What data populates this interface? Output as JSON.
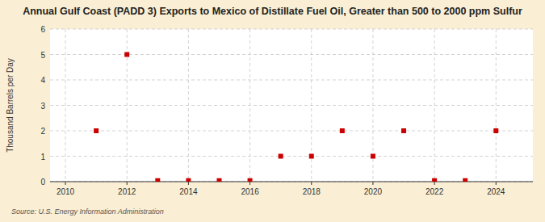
{
  "chart_data": {
    "type": "scatter",
    "title": "Annual Gulf Coast (PADD 3) Exports to Mexico of Distillate Fuel Oil, Greater than 500 to 2000 ppm Sulfur",
    "ylabel": "Thousand Barrels per Day",
    "annotations": [
      "Source: U.S. Energy Information Administration"
    ],
    "x": [
      2011,
      2012,
      2013,
      2014,
      2015,
      2016,
      2017,
      2018,
      2019,
      2020,
      2021,
      2022,
      2023,
      2024
    ],
    "values": [
      2,
      5,
      0.04,
      0.04,
      0.04,
      0.04,
      1,
      1,
      2,
      1,
      2,
      0.04,
      0.04,
      2
    ],
    "color": "#cc0000",
    "marker": "square",
    "xlim": [
      2009.5,
      2025.2
    ],
    "ylim": [
      0,
      6
    ],
    "xticks": [
      2010,
      2012,
      2014,
      2016,
      2018,
      2020,
      2022,
      2024
    ],
    "yticks": [
      0,
      1,
      2,
      3,
      4,
      5,
      6
    ],
    "grid": true
  }
}
